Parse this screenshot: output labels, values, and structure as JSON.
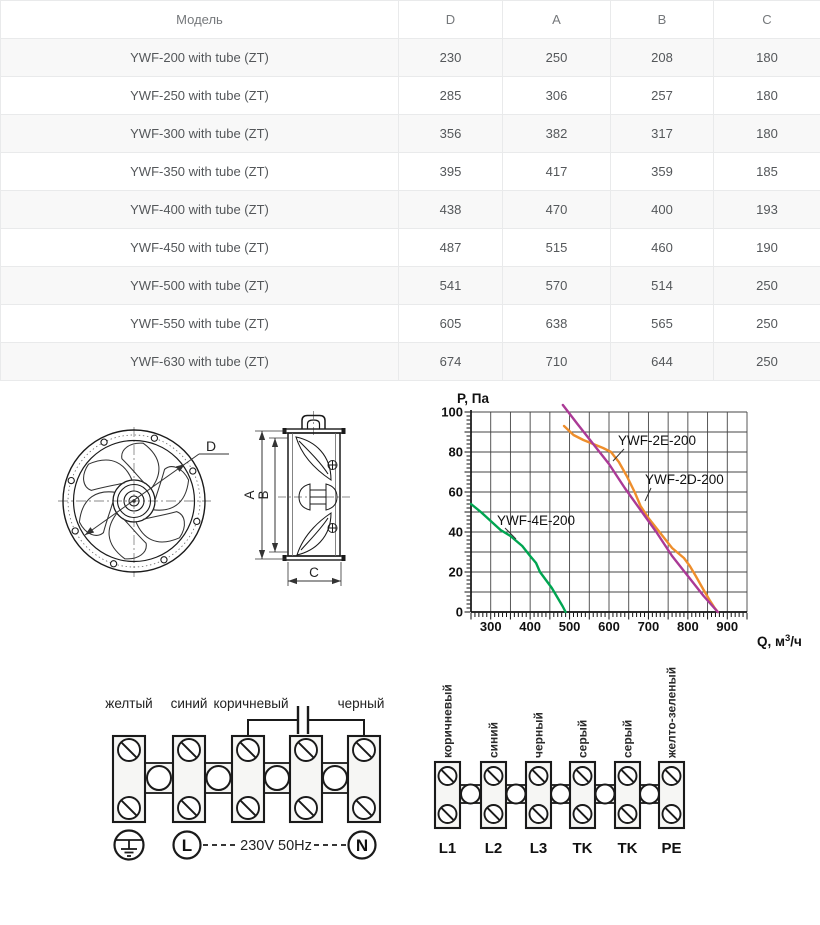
{
  "table": {
    "headers": [
      "Модель",
      "D",
      "A",
      "B",
      "C"
    ],
    "rows": [
      [
        "YWF-200 with tube (ZT)",
        "230",
        "250",
        "208",
        "180"
      ],
      [
        "YWF-250 with tube (ZT)",
        "285",
        "306",
        "257",
        "180"
      ],
      [
        "YWF-300 with tube (ZT)",
        "356",
        "382",
        "317",
        "180"
      ],
      [
        "YWF-350 with tube (ZT)",
        "395",
        "417",
        "359",
        "185"
      ],
      [
        "YWF-400 with tube (ZT)",
        "438",
        "470",
        "400",
        "193"
      ],
      [
        "YWF-450 with tube (ZT)",
        "487",
        "515",
        "460",
        "190"
      ],
      [
        "YWF-500 with tube (ZT)",
        "541",
        "570",
        "514",
        "250"
      ],
      [
        "YWF-550 with tube (ZT)",
        "605",
        "638",
        "565",
        "250"
      ],
      [
        "YWF-630 with tube (ZT)",
        "674",
        "710",
        "644",
        "250"
      ]
    ]
  },
  "drawings": {
    "front_view": {
      "dim_label": "D"
    },
    "side_view": {
      "dim_a": "A",
      "dim_b": "B",
      "dim_c": "C"
    }
  },
  "chart_data": {
    "type": "line",
    "title": "",
    "ylabel": "P, Па",
    "xlabel": "Q, м³/ч",
    "xlabel_prefix": "Q, м",
    "xlabel_sup": "3",
    "xlabel_suffix": "/ч",
    "xlim": [
      250,
      950
    ],
    "ylim": [
      0,
      100
    ],
    "x_tick_labels": [
      300,
      400,
      500,
      600,
      700,
      800,
      900
    ],
    "y_tick_labels": [
      0,
      20,
      40,
      60,
      80,
      100
    ],
    "x_grid_step": 50,
    "y_grid_step": 10,
    "x_minor_tick_step": 10,
    "y_minor_tick_step": 2,
    "grid": true,
    "legend_position": "inline-labels",
    "series": [
      {
        "name": "YWF-2E-200",
        "color": "#ee8e2c",
        "points": [
          [
            486,
            93
          ],
          [
            510,
            88.5
          ],
          [
            535,
            86
          ],
          [
            560,
            84
          ],
          [
            585,
            82
          ],
          [
            605,
            80
          ],
          [
            625,
            75
          ],
          [
            645,
            68
          ],
          [
            665,
            60
          ],
          [
            680,
            53
          ],
          [
            700,
            47
          ],
          [
            720,
            42
          ],
          [
            740,
            37
          ],
          [
            760,
            32
          ],
          [
            775,
            29.5
          ],
          [
            790,
            27
          ],
          [
            805,
            23
          ],
          [
            820,
            18
          ],
          [
            840,
            11
          ],
          [
            855,
            6
          ],
          [
            868,
            2
          ],
          [
            876,
            0
          ]
        ]
      },
      {
        "name": "YWF-2D-200",
        "color": "#ab3a96",
        "points": [
          [
            483,
            103.5
          ],
          [
            520,
            94
          ],
          [
            560,
            84
          ],
          [
            600,
            74
          ],
          [
            640,
            62
          ],
          [
            680,
            51
          ],
          [
            720,
            40
          ],
          [
            760,
            28
          ],
          [
            800,
            18
          ],
          [
            840,
            8
          ],
          [
            876,
            0
          ]
        ]
      },
      {
        "name": "YWF-4E-200",
        "color": "#00a551",
        "points": [
          [
            250,
            54
          ],
          [
            275,
            50
          ],
          [
            300,
            45.5
          ],
          [
            325,
            41
          ],
          [
            350,
            38
          ],
          [
            365,
            35.5
          ],
          [
            380,
            33
          ],
          [
            400,
            28
          ],
          [
            415,
            24.5
          ],
          [
            425,
            20
          ],
          [
            440,
            16
          ],
          [
            455,
            12
          ],
          [
            470,
            7
          ],
          [
            482,
            3
          ],
          [
            490,
            0
          ]
        ]
      }
    ]
  },
  "wiring_left": {
    "wire_labels": [
      "желтый",
      "синий",
      "коричневый",
      "черный"
    ],
    "phase_label": "L",
    "neutral_label": "N",
    "power_label": "230V 50Hz"
  },
  "wiring_right": {
    "wire_labels": [
      "коричневый",
      "синий",
      "черный",
      "серый",
      "серый",
      "желто-зеленый"
    ],
    "terminal_labels": [
      "L1",
      "L2",
      "L3",
      "TK",
      "TK",
      "PE"
    ]
  },
  "colors": {
    "table_zebra": "#f8f8f8",
    "table_border": "#e9eaeb",
    "header_text": "#75787b",
    "cell_text": "#54575a",
    "line_art": "#1a1a1a",
    "grid_line": "#454545"
  }
}
